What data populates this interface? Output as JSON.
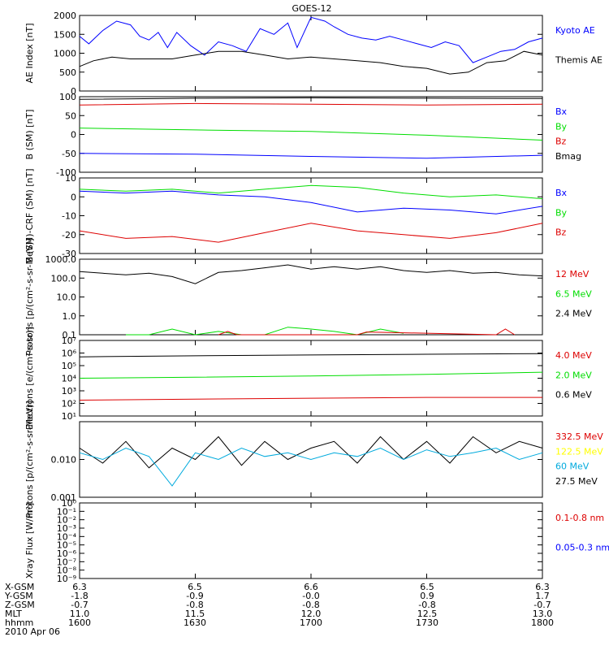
{
  "title": "GOES-12",
  "x_ticks": [
    "",
    "",
    "",
    "",
    ""
  ],
  "footer": {
    "rows": [
      {
        "name": "X-GSM",
        "values": [
          "6.3",
          "6.5",
          "6.6",
          "6.5",
          "6.3"
        ]
      },
      {
        "name": "Y-GSM",
        "values": [
          "-1.8",
          "-0.9",
          "-0.0",
          "0.9",
          "1.7"
        ]
      },
      {
        "name": "Z-GSM",
        "values": [
          "-0.7",
          "-0.8",
          "-0.8",
          "-0.8",
          "-0.7"
        ]
      },
      {
        "name": "MLT",
        "values": [
          "11.0",
          "11.5",
          "12.0",
          "12.5",
          "13.0"
        ]
      },
      {
        "name": "hhmm",
        "values": [
          "1600",
          "1630",
          "1700",
          "1730",
          "1800"
        ]
      }
    ],
    "date": "2010 Apr 06"
  },
  "colors": {
    "black": "#000000",
    "blue": "#0000ff",
    "green": "#00dd00",
    "red": "#dd0000",
    "yellow": "#ffff00",
    "cyan": "#00aadd"
  },
  "chart_data": [
    {
      "id": "ae",
      "type": "line",
      "ylabel": "AE Index [nT]",
      "scale": "linear",
      "ylim": [
        0,
        2000
      ],
      "ticks": [
        {
          "v": 0,
          "label": "0"
        },
        {
          "v": 500,
          "label": "500"
        },
        {
          "v": 1000,
          "label": "1000"
        },
        {
          "v": 1500,
          "label": "1500"
        },
        {
          "v": 2000,
          "label": "2000"
        }
      ],
      "legend": [
        {
          "text": "Kyoto AE",
          "color": "#0000ff"
        },
        {
          "text": "Themis AE",
          "color": "#000000"
        }
      ],
      "series": [
        {
          "name": "Kyoto AE",
          "color": "#0000ff",
          "x": [
            0,
            0.02,
            0.05,
            0.08,
            0.11,
            0.13,
            0.15,
            0.17,
            0.19,
            0.21,
            0.24,
            0.27,
            0.3,
            0.33,
            0.36,
            0.39,
            0.42,
            0.45,
            0.47,
            0.5,
            0.53,
            0.55,
            0.58,
            0.61,
            0.64,
            0.67,
            0.7,
            0.73,
            0.76,
            0.79,
            0.82,
            0.85,
            0.88,
            0.91,
            0.94,
            0.97,
            1.0
          ],
          "y": [
            1450,
            1250,
            1600,
            1850,
            1750,
            1450,
            1350,
            1550,
            1150,
            1550,
            1200,
            950,
            1300,
            1200,
            1050,
            1650,
            1500,
            1800,
            1150,
            1950,
            1850,
            1700,
            1500,
            1400,
            1350,
            1450,
            1350,
            1250,
            1150,
            1300,
            1200,
            750,
            900,
            1050,
            1100,
            1300,
            1400
          ]
        },
        {
          "name": "Themis AE",
          "color": "#000000",
          "x": [
            0,
            0.03,
            0.07,
            0.11,
            0.15,
            0.2,
            0.25,
            0.3,
            0.35,
            0.4,
            0.45,
            0.5,
            0.55,
            0.6,
            0.65,
            0.7,
            0.75,
            0.8,
            0.84,
            0.88,
            0.92,
            0.96,
            1.0
          ],
          "y": [
            650,
            800,
            900,
            850,
            850,
            850,
            950,
            1050,
            1050,
            950,
            850,
            900,
            850,
            800,
            750,
            650,
            600,
            450,
            500,
            750,
            800,
            1050,
            950
          ]
        }
      ]
    },
    {
      "id": "bfield",
      "type": "line",
      "ylabel": "B (SM) [nT]",
      "scale": "linear",
      "ylim": [
        -100,
        100
      ],
      "ticks": [
        {
          "v": -100,
          "label": "-100"
        },
        {
          "v": -50,
          "label": "-50"
        },
        {
          "v": 0,
          "label": "0"
        },
        {
          "v": 50,
          "label": "50"
        },
        {
          "v": 100,
          "label": "100"
        }
      ],
      "legend": [
        {
          "text": "Bx",
          "color": "#0000ff"
        },
        {
          "text": "By",
          "color": "#00dd00"
        },
        {
          "text": "Bz",
          "color": "#dd0000"
        },
        {
          "text": "Bmag",
          "color": "#000000"
        }
      ],
      "series": [
        {
          "name": "Bmag",
          "color": "#000000",
          "x": [
            0,
            0.25,
            0.5,
            0.75,
            1.0
          ],
          "y": [
            93,
            96,
            97,
            96,
            95
          ]
        },
        {
          "name": "Bz",
          "color": "#dd0000",
          "x": [
            0,
            0.25,
            0.5,
            0.75,
            1.0
          ],
          "y": [
            78,
            82,
            80,
            78,
            80
          ]
        },
        {
          "name": "By",
          "color": "#00dd00",
          "x": [
            0,
            0.25,
            0.5,
            0.75,
            1.0
          ],
          "y": [
            17,
            12,
            8,
            -2,
            -15
          ]
        },
        {
          "name": "Bx",
          "color": "#0000ff",
          "x": [
            0,
            0.25,
            0.5,
            0.75,
            1.0
          ],
          "y": [
            -50,
            -52,
            -58,
            -63,
            -55
          ]
        }
      ]
    },
    {
      "id": "bdiff",
      "type": "line",
      "ylabel": "B (SM)-CRF (SM) [nT]",
      "scale": "linear",
      "ylim": [
        -30,
        10
      ],
      "ticks": [
        {
          "v": -30,
          "label": "-30"
        },
        {
          "v": -20,
          "label": "-20"
        },
        {
          "v": -10,
          "label": "-10"
        },
        {
          "v": 0,
          "label": "0"
        },
        {
          "v": 10,
          "label": "10"
        }
      ],
      "legend": [
        {
          "text": "Bx",
          "color": "#0000ff"
        },
        {
          "text": "By",
          "color": "#00dd00"
        },
        {
          "text": "Bz",
          "color": "#dd0000"
        }
      ],
      "series": [
        {
          "name": "By",
          "color": "#00dd00",
          "x": [
            0,
            0.1,
            0.2,
            0.3,
            0.4,
            0.5,
            0.6,
            0.7,
            0.8,
            0.9,
            1.0
          ],
          "y": [
            4,
            3,
            4,
            2,
            4,
            6,
            5,
            2,
            0,
            1,
            -1
          ]
        },
        {
          "name": "Bx",
          "color": "#0000ff",
          "x": [
            0,
            0.1,
            0.2,
            0.3,
            0.4,
            0.5,
            0.6,
            0.7,
            0.8,
            0.9,
            1.0
          ],
          "y": [
            3,
            2,
            3,
            1,
            0,
            -3,
            -8,
            -6,
            -7,
            -9,
            -5
          ]
        },
        {
          "name": "Bz",
          "color": "#dd0000",
          "x": [
            0,
            0.1,
            0.2,
            0.3,
            0.4,
            0.5,
            0.6,
            0.7,
            0.8,
            0.9,
            1.0
          ],
          "y": [
            -18,
            -22,
            -21,
            -24,
            -19,
            -14,
            -18,
            -20,
            -22,
            -19,
            -14
          ]
        }
      ]
    },
    {
      "id": "protons_hi",
      "type": "line",
      "ylabel": "Protons [p/(cm²-s-sr-MeV)]",
      "scale": "log",
      "ylim": [
        0.1,
        1000
      ],
      "ticks": [
        {
          "v": 0.1,
          "label": "0.1"
        },
        {
          "v": 1,
          "label": "1.0"
        },
        {
          "v": 10,
          "label": "10.0"
        },
        {
          "v": 100,
          "label": "100.0"
        },
        {
          "v": 1000,
          "label": "1000.0"
        }
      ],
      "legend": [
        {
          "text": "12 MeV",
          "color": "#dd0000"
        },
        {
          "text": "6.5 MeV",
          "color": "#00dd00"
        },
        {
          "text": "2.4 MeV",
          "color": "#000000"
        }
      ],
      "series": [
        {
          "name": "2.4 MeV",
          "color": "#000000",
          "x": [
            0,
            0.05,
            0.1,
            0.15,
            0.2,
            0.25,
            0.3,
            0.35,
            0.4,
            0.45,
            0.5,
            0.55,
            0.6,
            0.65,
            0.7,
            0.75,
            0.8,
            0.85,
            0.9,
            0.95,
            1.0
          ],
          "y": [
            220,
            180,
            150,
            180,
            120,
            50,
            200,
            250,
            350,
            500,
            300,
            400,
            300,
            400,
            250,
            200,
            250,
            180,
            200,
            150,
            130
          ]
        },
        {
          "name": "6.5 MeV",
          "color": "#00dd00",
          "x": [
            0.1,
            0.15,
            0.2,
            0.25,
            0.3,
            0.35,
            0.4,
            0.45,
            0.5,
            0.55,
            0.6,
            0.65,
            0.7
          ],
          "y": [
            0.1,
            0.1,
            0.2,
            0.1,
            0.15,
            0.1,
            0.1,
            0.25,
            0.2,
            0.15,
            0.1,
            0.2,
            0.12
          ]
        },
        {
          "name": "12 MeV",
          "color": "#dd0000",
          "x": [
            0.3,
            0.32,
            0.34,
            0.6,
            0.62,
            0.9,
            0.92,
            0.94
          ],
          "y": [
            0.1,
            0.15,
            0.1,
            0.1,
            0.14,
            0.1,
            0.2,
            0.1
          ]
        }
      ]
    },
    {
      "id": "electrons",
      "type": "line",
      "ylabel": "Electrons [e/(cm²-s-sr)]",
      "scale": "log",
      "ylim": [
        10,
        10000000
      ],
      "ticks": [
        {
          "v": 10,
          "label": "10¹"
        },
        {
          "v": 100,
          "label": "10²"
        },
        {
          "v": 1000,
          "label": "10³"
        },
        {
          "v": 10000,
          "label": "10⁴"
        },
        {
          "v": 100000,
          "label": "10⁵"
        },
        {
          "v": 1000000,
          "label": "10⁶"
        },
        {
          "v": 10000000,
          "label": "10⁷"
        }
      ],
      "legend": [
        {
          "text": "4.0 MeV",
          "color": "#dd0000"
        },
        {
          "text": "2.0 MeV",
          "color": "#00dd00"
        },
        {
          "text": "0.6 MeV",
          "color": "#000000"
        }
      ],
      "series": [
        {
          "name": "0.6 MeV",
          "color": "#000000",
          "x": [
            0,
            0.25,
            0.5,
            0.75,
            1.0
          ],
          "y": [
            500000,
            600000,
            700000,
            800000,
            900000
          ]
        },
        {
          "name": "2.0 MeV",
          "color": "#00dd00",
          "x": [
            0,
            0.25,
            0.5,
            0.75,
            1.0
          ],
          "y": [
            10000,
            12000,
            15000,
            20000,
            30000
          ]
        },
        {
          "name": "4.0 MeV",
          "color": "#dd0000",
          "x": [
            0,
            0.25,
            0.5,
            0.75,
            1.0
          ],
          "y": [
            180,
            220,
            260,
            300,
            300
          ]
        }
      ]
    },
    {
      "id": "protons_lo",
      "type": "line",
      "ylabel": "Protons [p/(cm²-s-sr-MeV)]",
      "scale": "log",
      "ylim": [
        0.001,
        0.1
      ],
      "ticks": [
        {
          "v": 0.001,
          "label": "0.001"
        },
        {
          "v": 0.01,
          "label": "0.010"
        }
      ],
      "legend": [
        {
          "text": "332.5 MeV",
          "color": "#dd0000"
        },
        {
          "text": "122.5 MeV",
          "color": "#ffff00"
        },
        {
          "text": "60 MeV",
          "color": "#00aadd"
        },
        {
          "text": "27.5 MeV",
          "color": "#000000"
        }
      ],
      "series": [
        {
          "name": "27.5 MeV",
          "color": "#000000",
          "x": [
            0,
            0.05,
            0.1,
            0.15,
            0.2,
            0.25,
            0.3,
            0.35,
            0.4,
            0.45,
            0.5,
            0.55,
            0.6,
            0.65,
            0.7,
            0.75,
            0.8,
            0.85,
            0.9,
            0.95,
            1.0
          ],
          "y": [
            0.02,
            0.008,
            0.03,
            0.006,
            0.02,
            0.01,
            0.04,
            0.007,
            0.03,
            0.01,
            0.02,
            0.03,
            0.008,
            0.04,
            0.01,
            0.03,
            0.008,
            0.04,
            0.015,
            0.03,
            0.02
          ]
        },
        {
          "name": "60 MeV",
          "color": "#00aadd",
          "x": [
            0,
            0.05,
            0.1,
            0.15,
            0.2,
            0.25,
            0.3,
            0.35,
            0.4,
            0.45,
            0.5,
            0.55,
            0.6,
            0.65,
            0.7,
            0.75,
            0.8,
            0.85,
            0.9,
            0.95,
            1.0
          ],
          "y": [
            0.015,
            0.01,
            0.02,
            0.012,
            0.002,
            0.015,
            0.01,
            0.02,
            0.012,
            0.015,
            0.01,
            0.015,
            0.012,
            0.02,
            0.01,
            0.018,
            0.012,
            0.015,
            0.02,
            0.01,
            0.015
          ]
        }
      ]
    },
    {
      "id": "xray",
      "type": "line",
      "ylabel": "Xray Flux [W/m²]",
      "scale": "log",
      "ylim": [
        1e-09,
        1
      ],
      "ticks": [
        {
          "v": 1e-09,
          "label": "10⁻⁹"
        },
        {
          "v": 1e-08,
          "label": "10⁻⁸"
        },
        {
          "v": 1e-07,
          "label": "10⁻⁷"
        },
        {
          "v": 1e-06,
          "label": "10⁻⁶"
        },
        {
          "v": 1e-05,
          "label": "10⁻⁵"
        },
        {
          "v": 0.0001,
          "label": "10⁻⁴"
        },
        {
          "v": 0.001,
          "label": "10⁻³"
        },
        {
          "v": 0.01,
          "label": "10⁻²"
        },
        {
          "v": 0.1,
          "label": "10⁻¹"
        },
        {
          "v": 1,
          "label": "10⁰"
        }
      ],
      "legend": [
        {
          "text": "0.1-0.8 nm",
          "color": "#dd0000"
        },
        {
          "text": "0.05-0.3 nm",
          "color": "#0000ff"
        }
      ],
      "series": []
    }
  ]
}
